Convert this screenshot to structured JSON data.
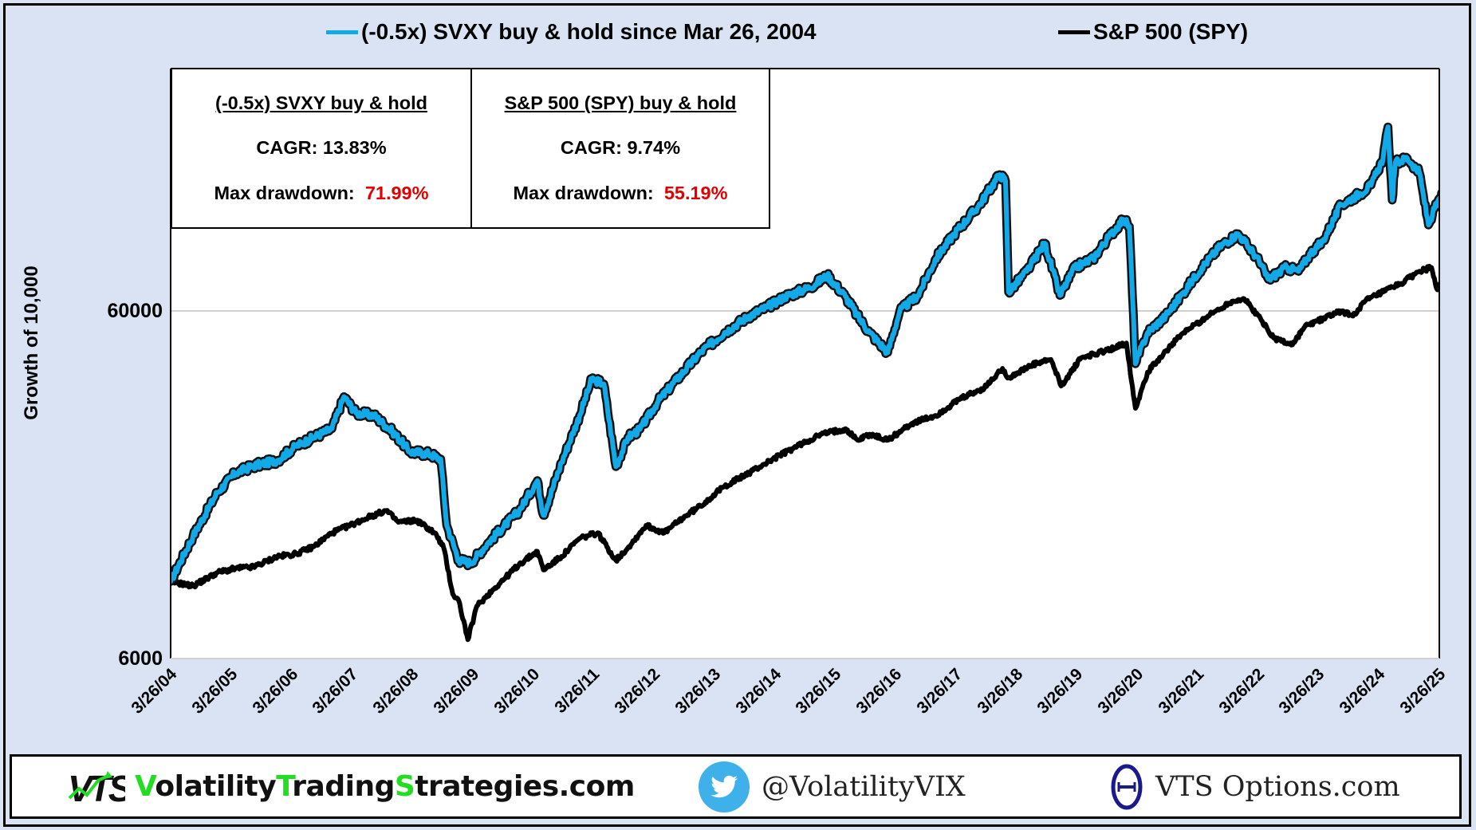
{
  "chart_data": {
    "type": "line",
    "title": "",
    "xlabel": "",
    "ylabel": "Growth of 10,000",
    "y_scale": "log",
    "ylim": [
      6000,
      260000
    ],
    "y_ticks": [
      6000,
      60000
    ],
    "y_tick_labels": [
      "6000",
      "60000"
    ],
    "x_range": [
      2004.23,
      2025.3
    ],
    "x_tick_labels": [
      "3/26/04",
      "3/26/05",
      "3/26/06",
      "3/26/07",
      "3/26/08",
      "3/26/09",
      "3/26/10",
      "3/26/11",
      "3/26/12",
      "3/26/13",
      "3/26/14",
      "3/26/15",
      "3/26/16",
      "3/26/17",
      "3/26/18",
      "3/26/19",
      "3/26/20",
      "3/26/21",
      "3/26/22",
      "3/26/23",
      "3/26/24",
      "3/26/25"
    ],
    "grid": "horizontal major lines",
    "legend_position": "top",
    "series": [
      {
        "name": "(-0.5x) SVXY buy & hold since Mar 26, 2004",
        "color": "#12a9e8",
        "x": [
          2004.23,
          2004.6,
          2005.0,
          2005.3,
          2005.6,
          2006.0,
          2006.3,
          2006.6,
          2006.9,
          2007.1,
          2007.3,
          2007.6,
          2007.9,
          2008.2,
          2008.5,
          2008.7,
          2008.8,
          2009.0,
          2009.2,
          2009.5,
          2010.0,
          2010.3,
          2010.4,
          2010.7,
          2011.0,
          2011.2,
          2011.4,
          2011.6,
          2011.8,
          2012.0,
          2012.3,
          2012.6,
          2013.0,
          2013.4,
          2013.8,
          2014.1,
          2014.4,
          2014.8,
          2015.1,
          2015.4,
          2015.6,
          2015.8,
          2016.1,
          2016.3,
          2016.6,
          2016.9,
          2017.2,
          2017.6,
          2017.95,
          2018.05,
          2018.1,
          2018.4,
          2018.7,
          2018.95,
          2019.2,
          2019.5,
          2019.8,
          2020.0,
          2020.1,
          2020.2,
          2020.4,
          2020.7,
          2021.0,
          2021.3,
          2021.6,
          2021.9,
          2022.2,
          2022.4,
          2022.7,
          2022.9,
          2023.1,
          2023.3,
          2023.6,
          2023.9,
          2024.1,
          2024.3,
          2024.38,
          2024.45,
          2024.5,
          2024.7,
          2024.9,
          2025.05,
          2025.15,
          2025.3
        ],
        "values": [
          10000,
          13500,
          18000,
          20500,
          21500,
          22300,
          24500,
          26000,
          27500,
          34000,
          30500,
          30000,
          27000,
          23600,
          23300,
          22500,
          14500,
          11500,
          11300,
          13000,
          16000,
          19500,
          15500,
          22000,
          30000,
          38200,
          37000,
          21400,
          26000,
          27400,
          33000,
          38000,
          45600,
          52000,
          58000,
          61500,
          66000,
          70000,
          75900,
          66000,
          58000,
          52000,
          45600,
          60000,
          66500,
          85000,
          100000,
          120000,
          148000,
          142000,
          68000,
          78000,
          94000,
          66500,
          80000,
          85000,
          100000,
          110000,
          105000,
          42300,
          52000,
          58000,
          68000,
          80000,
          92000,
          100000,
          86000,
          74000,
          80000,
          78000,
          88000,
          95000,
          121000,
          130000,
          138000,
          165000,
          203000,
          125000,
          160000,
          165000,
          150000,
          106000,
          118000,
          131000
        ]
      },
      {
        "name": "S&P 500  (SPY)",
        "color": "#000000",
        "x": [
          2004.23,
          2004.6,
          2005.0,
          2005.3,
          2005.6,
          2006.0,
          2006.3,
          2006.6,
          2006.9,
          2007.2,
          2007.5,
          2007.8,
          2008.0,
          2008.3,
          2008.6,
          2008.75,
          2008.9,
          2009.0,
          2009.15,
          2009.3,
          2009.6,
          2010.0,
          2010.3,
          2010.4,
          2010.7,
          2011.0,
          2011.3,
          2011.6,
          2011.8,
          2012.1,
          2012.4,
          2012.7,
          2013.0,
          2013.4,
          2013.8,
          2014.2,
          2014.6,
          2015.0,
          2015.4,
          2015.6,
          2015.8,
          2016.1,
          2016.5,
          2016.9,
          2017.3,
          2017.7,
          2018.0,
          2018.1,
          2018.5,
          2018.8,
          2018.97,
          2019.3,
          2019.7,
          2020.05,
          2020.2,
          2020.4,
          2020.7,
          2021.0,
          2021.4,
          2021.8,
          2022.0,
          2022.3,
          2022.5,
          2022.8,
          2023.0,
          2023.3,
          2023.6,
          2023.8,
          2024.0,
          2024.3,
          2024.6,
          2024.9,
          2025.1,
          2025.2,
          2025.3
        ],
        "values": [
          10000,
          9700,
          10600,
          10900,
          11000,
          11800,
          12000,
          12600,
          13800,
          14500,
          15300,
          16000,
          14800,
          15000,
          13800,
          12500,
          9200,
          8800,
          6800,
          8500,
          9600,
          11200,
          12200,
          10800,
          11800,
          13300,
          13800,
          11500,
          12500,
          14500,
          13800,
          15200,
          16500,
          18800,
          20500,
          22500,
          24500,
          26500,
          27500,
          25500,
          26500,
          25500,
          28500,
          30000,
          33500,
          36000,
          41000,
          38500,
          42000,
          43500,
          36500,
          44000,
          46000,
          48500,
          31500,
          40000,
          46000,
          52000,
          58000,
          64000,
          65000,
          56000,
          50000,
          48000,
          54000,
          57000,
          60000,
          58000,
          64000,
          68000,
          72000,
          78000,
          80000,
          69000,
          77000
        ]
      }
    ],
    "annotations": {
      "stats_table": [
        {
          "title": "(-0.5x) SVXY buy & hold",
          "cagr": "13.83%",
          "max_drawdown": "71.99%"
        },
        {
          "title": "S&P 500  (SPY) buy & hold",
          "cagr": "9.74%",
          "max_drawdown": "55.19%"
        }
      ]
    }
  },
  "legend": {
    "items": [
      {
        "label": "(-0.5x) SVXY buy & hold since Mar 26, 2004",
        "color": "#12a9e8"
      },
      {
        "label": "S&P 500  (SPY)",
        "color": "#000000"
      }
    ]
  },
  "stats": {
    "svxy": {
      "title": "(-0.5x) SVXY buy & hold",
      "cagr_label": "CAGR:  13.83%",
      "dd_label": "Max drawdown:",
      "dd_value": "71.99%"
    },
    "spy": {
      "title": "S&P 500  (SPY) buy & hold",
      "cagr_label": "CAGR:  9.74%",
      "dd_label": "Max drawdown:",
      "dd_value": "55.19%"
    }
  },
  "footer": {
    "vts_logo": "VTS",
    "site_parts": [
      {
        "text": "V",
        "green": true
      },
      {
        "text": "olatility",
        "green": false
      },
      {
        "text": "T",
        "green": true
      },
      {
        "text": "rading",
        "green": false
      },
      {
        "text": "S",
        "green": true
      },
      {
        "text": "trategies.com",
        "green": false
      }
    ],
    "twitter_handle": "@VolatilityVIX",
    "options_site": "VTS Options.com",
    "accent_green": "#22dd22",
    "twitter_blue": "#1da1f2",
    "theta_navy": "#1a1a8c"
  },
  "colors": {
    "background": "#dae3f3",
    "svxy_line": "#12a9e8",
    "spy_line": "#000000",
    "drawdown_red": "#e00000"
  }
}
